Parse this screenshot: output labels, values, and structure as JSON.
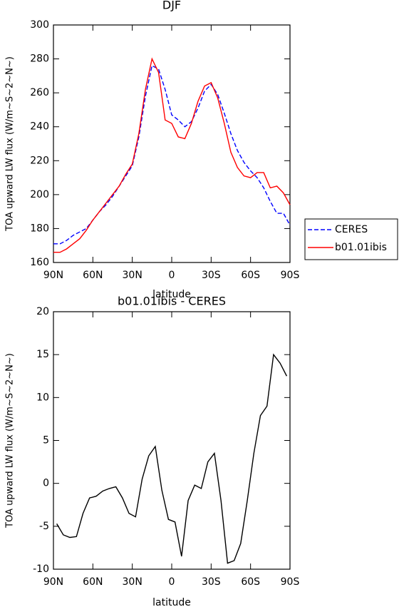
{
  "chart_data": [
    {
      "type": "line",
      "title": "DJF",
      "xlabel": "latitude",
      "ylabel": "TOA upward LW flux (W/m~S~2~N~)",
      "x": [
        90,
        85,
        80,
        75,
        70,
        65,
        60,
        55,
        50,
        45,
        40,
        35,
        30,
        25,
        20,
        15,
        10,
        5,
        0,
        -5,
        -10,
        -15,
        -20,
        -25,
        -30,
        -35,
        -40,
        -45,
        -50,
        -55,
        -60,
        -65,
        -70,
        -75,
        -80,
        -85,
        -90
      ],
      "series": [
        {
          "name": "CERES",
          "color": "#0000ff",
          "dash": true,
          "values": [
            171,
            171,
            173,
            176,
            178,
            180,
            185,
            190,
            194,
            199,
            205,
            211,
            217,
            234,
            258,
            276,
            274,
            262,
            247,
            244,
            240,
            243,
            251,
            261,
            265,
            259,
            248,
            236,
            226,
            219,
            214,
            210,
            204,
            196,
            189,
            189,
            182
          ]
        },
        {
          "name": "b01.01ibis",
          "color": "#ff0000",
          "dash": false,
          "values": [
            166,
            166,
            168,
            171,
            174,
            179,
            185,
            190,
            195,
            200,
            205,
            212,
            218,
            236,
            262,
            280,
            272,
            244,
            242,
            234,
            233,
            242,
            255,
            264,
            266,
            257,
            242,
            225,
            216,
            211,
            210,
            213,
            213,
            204,
            205,
            201,
            194
          ]
        }
      ],
      "xlim": [
        90,
        -90
      ],
      "xticks": [
        {
          "value": 90,
          "label": "90N"
        },
        {
          "value": 60,
          "label": "60N"
        },
        {
          "value": 30,
          "label": "30N"
        },
        0,
        {
          "value": -30,
          "label": "30S"
        },
        {
          "value": -60,
          "label": "60S"
        },
        {
          "value": -90,
          "label": "90S"
        }
      ],
      "ylim": [
        160,
        300
      ],
      "yticks": [
        160,
        180,
        200,
        220,
        240,
        260,
        280,
        300
      ],
      "legend": "right"
    },
    {
      "type": "line",
      "title": "b01.01ibis - CERES",
      "xlabel": "latitude",
      "ylabel": "TOA upward LW flux (W/m~S~2~N~)",
      "x": [
        87.5,
        82.5,
        77.5,
        72.5,
        67.5,
        62.5,
        57.5,
        52.5,
        47.5,
        42.5,
        37.5,
        32.5,
        27.5,
        22.5,
        17.5,
        12.5,
        7.5,
        2.5,
        -2.5,
        -7.5,
        -12.5,
        -17.5,
        -22.5,
        -27.5,
        -32.5,
        -37.5,
        -42.5,
        -47.5,
        -52.5,
        -57.5,
        -62.5,
        -67.5,
        -72.5,
        -77.5,
        -82.5,
        -87.5
      ],
      "series": [
        {
          "color": "#000000",
          "dash": false,
          "values": [
            -4.7,
            -6.0,
            -6.3,
            -6.2,
            -3.5,
            -1.7,
            -1.5,
            -0.9,
            -0.6,
            -0.4,
            -1.7,
            -3.5,
            -3.9,
            0.5,
            3.2,
            4.3,
            -0.8,
            -4.2,
            -4.5,
            -8.5,
            -2.0,
            -0.2,
            -0.6,
            2.5,
            3.5,
            -2.0,
            -9.3,
            -9.0,
            -7.0,
            -2.0,
            3.5,
            7.9,
            9.0,
            15.0,
            14.0,
            12.5
          ]
        }
      ],
      "xlim": [
        90,
        -90
      ],
      "xticks": [
        {
          "value": 90,
          "label": "90N"
        },
        {
          "value": 60,
          "label": "60N"
        },
        {
          "value": 30,
          "label": "30N"
        },
        0,
        {
          "value": -30,
          "label": "30S"
        },
        {
          "value": -60,
          "label": "60S"
        },
        {
          "value": -90,
          "label": "90S"
        }
      ],
      "ylim": [
        -10,
        20
      ],
      "yticks": [
        -10,
        -5,
        0,
        5,
        10,
        15,
        20
      ]
    }
  ]
}
